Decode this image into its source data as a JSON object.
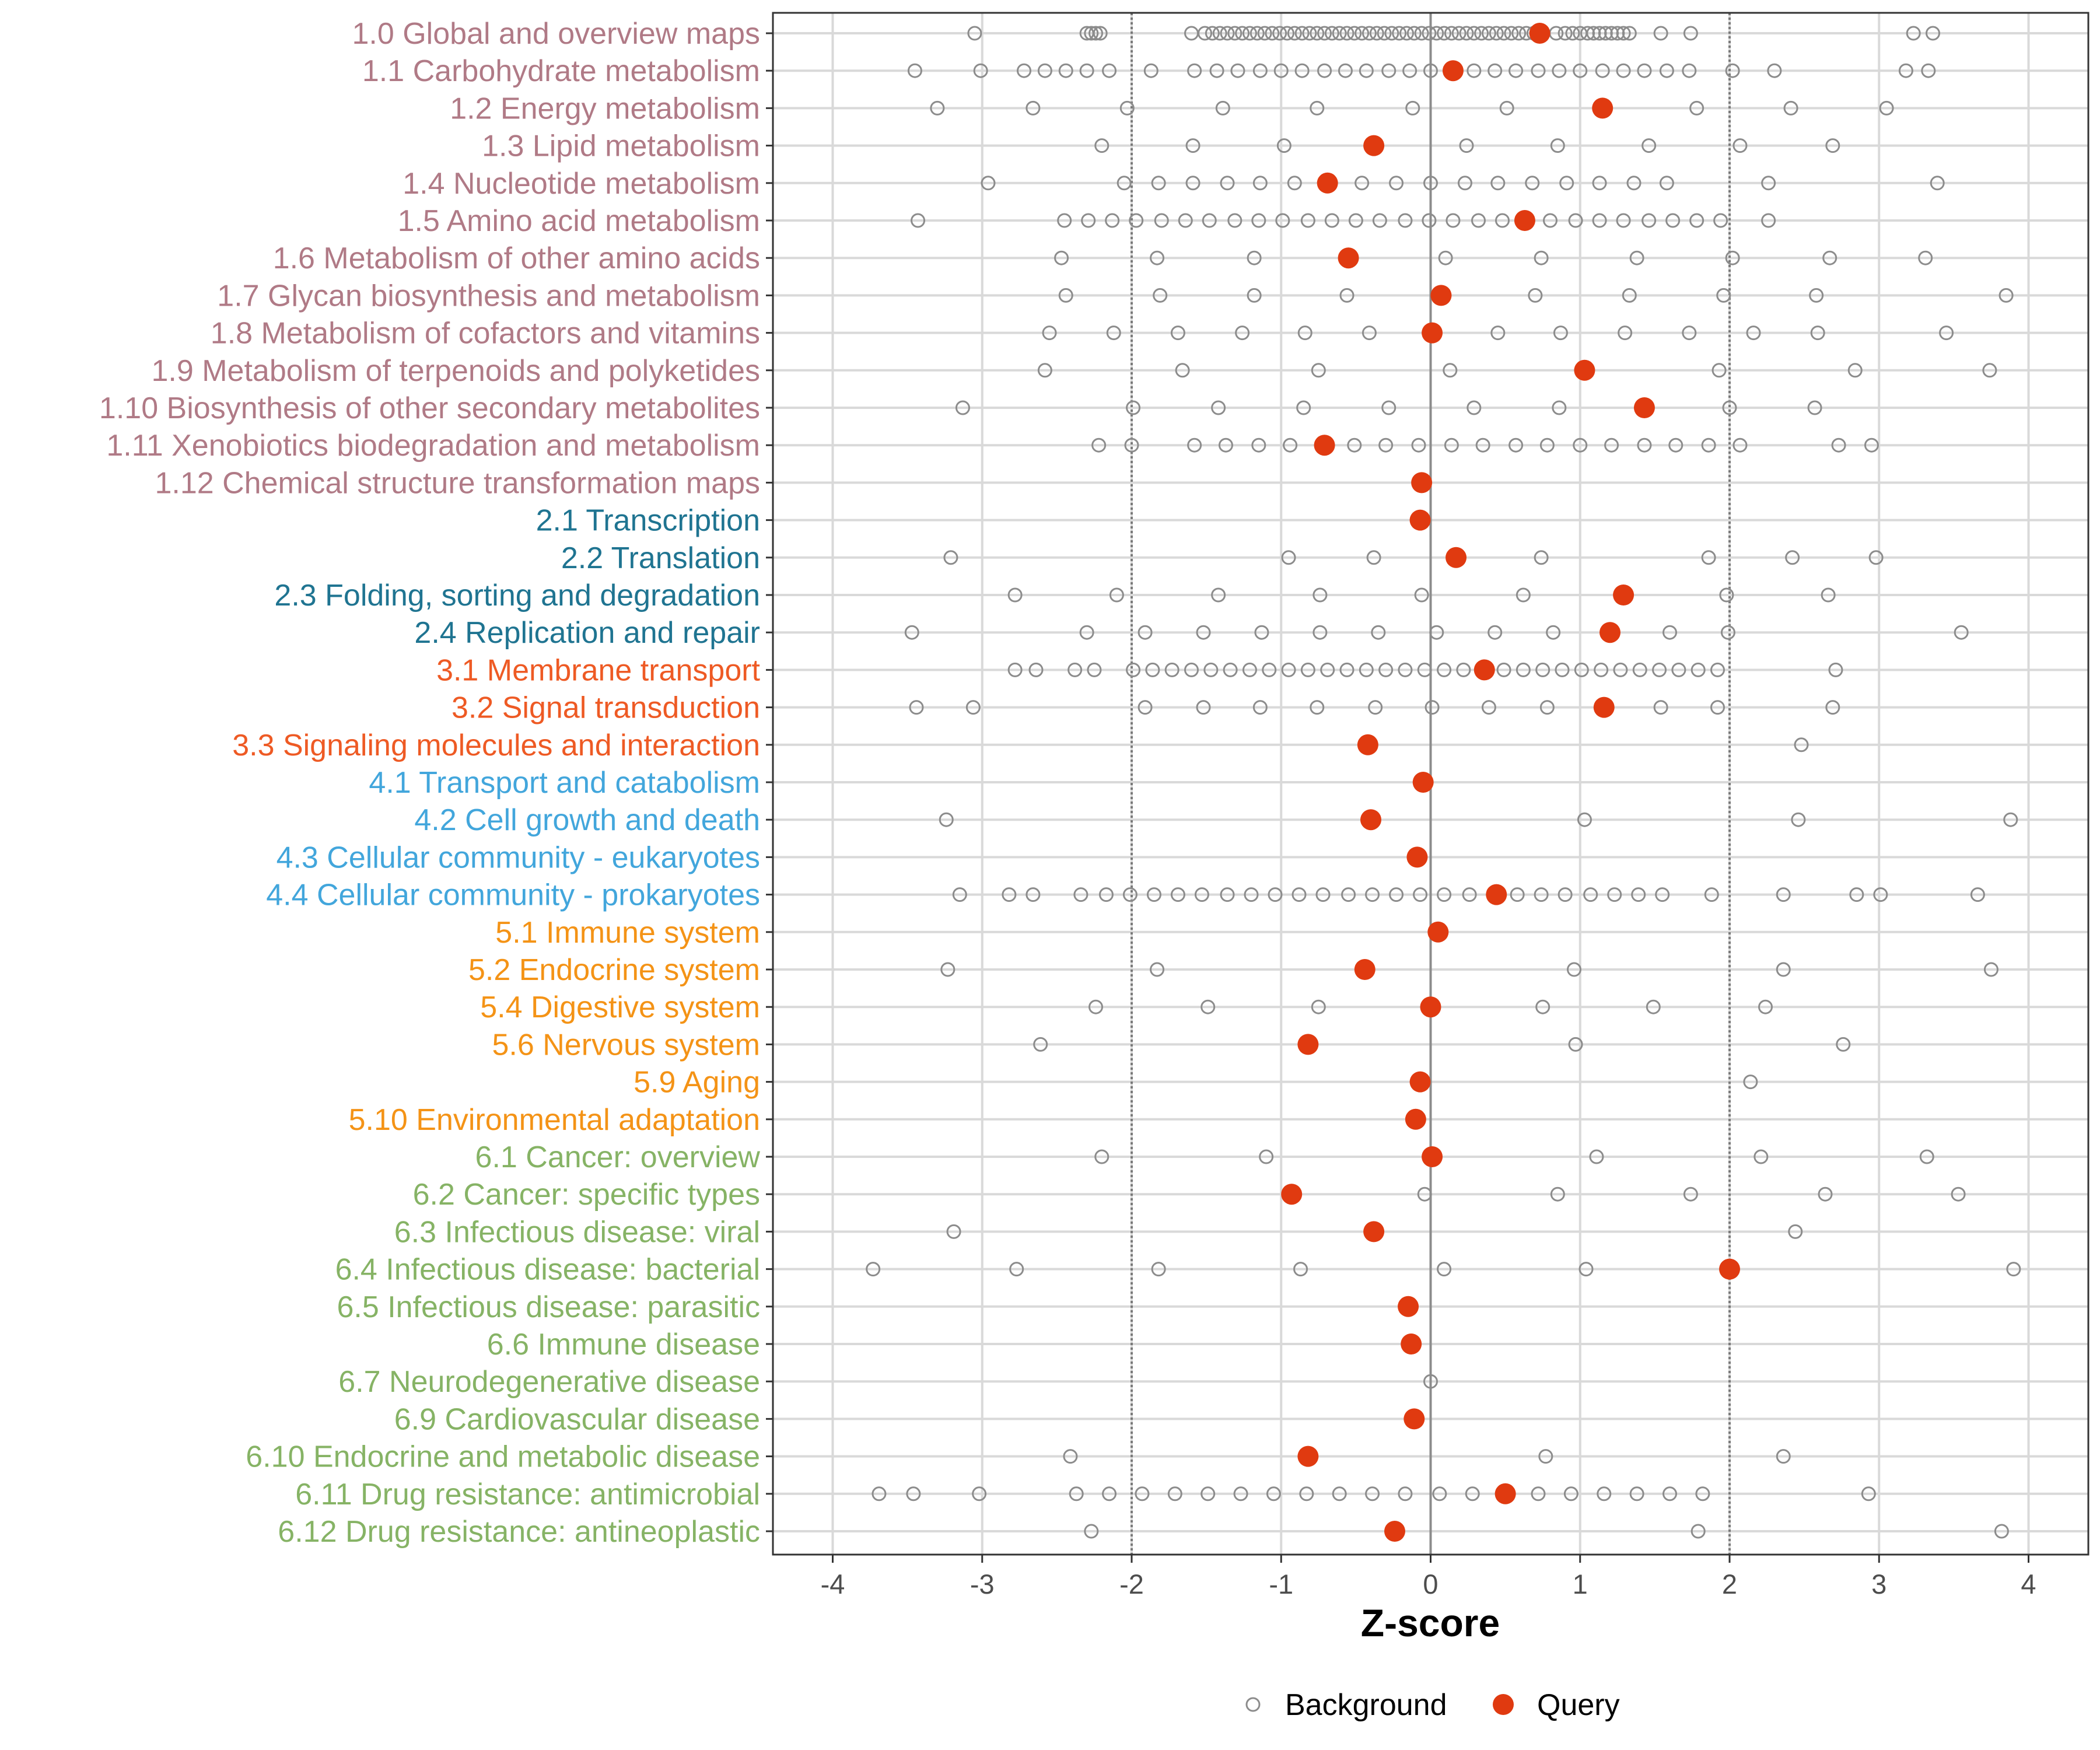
{
  "chart_data": {
    "type": "dot",
    "title": "",
    "xlabel": "Z-score",
    "ylabel": "",
    "xlim": [
      -4.4,
      4.4
    ],
    "x_ticks": [
      -4,
      -3,
      -2,
      -1,
      0,
      1,
      2,
      3,
      4
    ],
    "tick_labels": [
      "-4",
      "-3",
      "-2",
      "-1",
      "0",
      "1",
      "2",
      "3",
      "4"
    ],
    "reference_lines": [
      -2,
      2
    ],
    "zero_line": 0,
    "legend": [
      {
        "name": "Background",
        "marker": "open-circle",
        "color": "#8c8c8c"
      },
      {
        "name": "Query",
        "marker": "filled-circle",
        "color": "#e03a10"
      }
    ],
    "group_colors": {
      "1": "#b07a86",
      "2": "#1f7491",
      "3": "#ee5a24",
      "4": "#42a6dc",
      "5": "#f49316",
      "6": "#86b365"
    },
    "categories": [
      {
        "label": "1.0 Global and overview maps",
        "group": "1",
        "query": 0.73,
        "background": [
          -3.05,
          -2.3,
          -2.27,
          -2.24,
          -2.21,
          -1.6,
          -1.51,
          -1.46,
          -1.41,
          -1.36,
          -1.31,
          -1.26,
          -1.21,
          -1.16,
          -1.11,
          -1.06,
          -1.01,
          -0.96,
          -0.91,
          -0.86,
          -0.81,
          -0.76,
          -0.71,
          -0.66,
          -0.61,
          -0.56,
          -0.51,
          -0.46,
          -0.41,
          -0.36,
          -0.31,
          -0.26,
          -0.21,
          -0.16,
          -0.11,
          -0.06,
          -0.01,
          0.04,
          0.09,
          0.14,
          0.19,
          0.24,
          0.29,
          0.34,
          0.39,
          0.44,
          0.49,
          0.54,
          0.59,
          0.64,
          0.69,
          0.84,
          0.9,
          0.95,
          1.0,
          1.05,
          1.09,
          1.13,
          1.17,
          1.21,
          1.25,
          1.29,
          1.33,
          1.54,
          1.74,
          3.23,
          3.36
        ]
      },
      {
        "label": "1.1 Carbohydrate metabolism",
        "group": "1",
        "query": 0.15,
        "background": [
          -3.45,
          -3.01,
          -2.72,
          -2.58,
          -2.44,
          -2.3,
          -2.15,
          -1.87,
          -1.58,
          -1.43,
          -1.29,
          -1.14,
          -1.0,
          -0.86,
          -0.71,
          -0.57,
          -0.43,
          -0.28,
          -0.14,
          0.0,
          0.29,
          0.43,
          0.57,
          0.72,
          0.86,
          1.0,
          1.15,
          1.29,
          1.43,
          1.58,
          1.73,
          2.02,
          2.3,
          3.18,
          3.33
        ]
      },
      {
        "label": "1.2 Energy metabolism",
        "group": "1",
        "query": 1.15,
        "background": [
          -3.3,
          -2.66,
          -2.03,
          -1.39,
          -0.76,
          -0.12,
          0.51,
          1.78,
          2.41,
          3.05
        ]
      },
      {
        "label": "1.3 Lipid metabolism",
        "group": "1",
        "query": -0.38,
        "background": [
          -2.2,
          -1.59,
          -0.98,
          0.24,
          0.85,
          1.46,
          2.07,
          2.69
        ]
      },
      {
        "label": "1.4 Nucleotide metabolism",
        "group": "1",
        "query": -0.69,
        "background": [
          -2.96,
          -2.05,
          -1.82,
          -1.59,
          -1.36,
          -1.14,
          -0.91,
          -0.46,
          -0.23,
          0.0,
          0.23,
          0.45,
          0.68,
          0.91,
          1.13,
          1.36,
          1.58,
          2.26,
          3.39
        ]
      },
      {
        "label": "1.5 Amino acid metabolism",
        "group": "1",
        "query": 0.63,
        "background": [
          -3.43,
          -2.45,
          -2.29,
          -2.13,
          -1.97,
          -1.8,
          -1.64,
          -1.48,
          -1.31,
          -1.15,
          -0.99,
          -0.82,
          -0.66,
          -0.5,
          -0.34,
          -0.17,
          -0.01,
          0.15,
          0.32,
          0.48,
          0.8,
          0.97,
          1.13,
          1.29,
          1.46,
          1.62,
          1.78,
          1.94,
          2.26
        ]
      },
      {
        "label": "1.6 Metabolism of other amino acids",
        "group": "1",
        "query": -0.55,
        "background": [
          -2.47,
          -1.83,
          -1.18,
          0.1,
          0.74,
          1.38,
          2.02,
          2.67,
          3.31
        ]
      },
      {
        "label": "1.7 Glycan biosynthesis and metabolism",
        "group": "1",
        "query": 0.07,
        "background": [
          -2.44,
          -1.81,
          -1.18,
          -0.56,
          0.7,
          1.33,
          1.96,
          2.58,
          3.85
        ]
      },
      {
        "label": "1.8 Metabolism of cofactors and vitamins",
        "group": "1",
        "query": 0.01,
        "background": [
          -2.55,
          -2.12,
          -1.69,
          -1.26,
          -0.84,
          -0.41,
          0.45,
          0.87,
          1.3,
          1.73,
          2.16,
          2.59,
          3.45
        ]
      },
      {
        "label": "1.9 Metabolism of terpenoids and polyketides",
        "group": "1",
        "query": 1.03,
        "background": [
          -2.58,
          -1.66,
          -0.75,
          0.13,
          1.93,
          2.84,
          3.74
        ]
      },
      {
        "label": "1.10 Biosynthesis of other secondary metabolites",
        "group": "1",
        "query": 1.43,
        "background": [
          -3.13,
          -1.99,
          -1.42,
          -0.85,
          -0.28,
          0.29,
          0.86,
          2.0,
          2.57
        ]
      },
      {
        "label": "1.11 Xenobiotics biodegradation and metabolism",
        "group": "1",
        "query": -0.71,
        "background": [
          -2.22,
          -2.0,
          -1.58,
          -1.37,
          -1.15,
          -0.94,
          -0.51,
          -0.3,
          -0.08,
          0.14,
          0.35,
          0.57,
          0.78,
          1.0,
          1.21,
          1.43,
          1.64,
          1.86,
          2.07,
          2.73,
          2.95
        ]
      },
      {
        "label": "1.12 Chemical structure transformation maps",
        "group": "1",
        "query": -0.06,
        "background": []
      },
      {
        "label": "2.1 Transcription",
        "group": "2",
        "query": -0.07,
        "background": []
      },
      {
        "label": "2.2 Translation",
        "group": "2",
        "query": 0.17,
        "background": [
          -3.21,
          -0.95,
          -0.38,
          0.74,
          1.86,
          2.42,
          2.98
        ]
      },
      {
        "label": "2.3 Folding, sorting and degradation",
        "group": "2",
        "query": 1.29,
        "background": [
          -2.78,
          -2.1,
          -1.42,
          -0.74,
          -0.06,
          0.62,
          1.98,
          2.66
        ]
      },
      {
        "label": "2.4 Replication and repair",
        "group": "2",
        "query": 1.2,
        "background": [
          -3.47,
          -2.3,
          -1.91,
          -1.52,
          -1.13,
          -0.74,
          -0.35,
          0.04,
          0.43,
          0.82,
          1.6,
          1.99,
          3.55
        ]
      },
      {
        "label": "3.1 Membrane transport",
        "group": "3",
        "query": 0.36,
        "background": [
          -2.78,
          -2.64,
          -2.38,
          -2.25,
          -1.99,
          -1.86,
          -1.73,
          -1.6,
          -1.47,
          -1.34,
          -1.21,
          -1.08,
          -0.95,
          -0.82,
          -0.69,
          -0.56,
          -0.43,
          -0.3,
          -0.17,
          -0.04,
          0.09,
          0.22,
          0.49,
          0.62,
          0.75,
          0.88,
          1.01,
          1.14,
          1.27,
          1.4,
          1.53,
          1.66,
          1.79,
          1.92,
          2.71
        ]
      },
      {
        "label": "3.2 Signal transduction",
        "group": "3",
        "query": 1.16,
        "background": [
          -3.44,
          -3.06,
          -1.91,
          -1.52,
          -1.14,
          -0.76,
          -0.37,
          0.01,
          0.39,
          0.78,
          1.54,
          1.92,
          2.69
        ]
      },
      {
        "label": "3.3 Signaling molecules and interaction",
        "group": "3",
        "query": -0.42,
        "background": [
          2.48
        ]
      },
      {
        "label": "4.1 Transport and catabolism",
        "group": "4",
        "query": -0.05,
        "background": []
      },
      {
        "label": "4.2 Cell growth and death",
        "group": "4",
        "query": -0.4,
        "background": [
          -3.24,
          1.03,
          2.46,
          3.88
        ]
      },
      {
        "label": "4.3 Cellular community - eukaryotes",
        "group": "4",
        "query": -0.09,
        "background": []
      },
      {
        "label": "4.4 Cellular community - prokaryotes",
        "group": "4",
        "query": 0.44,
        "background": [
          -3.15,
          -2.82,
          -2.66,
          -2.34,
          -2.17,
          -2.01,
          -1.85,
          -1.69,
          -1.53,
          -1.36,
          -1.2,
          -1.04,
          -0.88,
          -0.72,
          -0.55,
          -0.39,
          -0.23,
          -0.07,
          0.09,
          0.26,
          0.58,
          0.74,
          0.9,
          1.07,
          1.23,
          1.39,
          1.55,
          1.88,
          2.36,
          2.85,
          3.01,
          3.66
        ]
      },
      {
        "label": "5.1 Immune system",
        "group": "5",
        "query": 0.05,
        "background": []
      },
      {
        "label": "5.2 Endocrine system",
        "group": "5",
        "query": -0.44,
        "background": [
          -3.23,
          -1.83,
          0.96,
          2.36,
          3.75
        ]
      },
      {
        "label": "5.4 Digestive system",
        "group": "5",
        "query": 0.0,
        "background": [
          -2.24,
          -1.49,
          -0.75,
          0.75,
          1.49,
          2.24
        ]
      },
      {
        "label": "5.6 Nervous system",
        "group": "5",
        "query": -0.82,
        "background": [
          -2.61,
          0.97,
          2.76
        ]
      },
      {
        "label": "5.9 Aging",
        "group": "5",
        "query": -0.07,
        "background": [
          2.14
        ]
      },
      {
        "label": "5.10 Environmental adaptation",
        "group": "5",
        "query": -0.1,
        "background": []
      },
      {
        "label": "6.1 Cancer: overview",
        "group": "6",
        "query": 0.01,
        "background": [
          -2.2,
          -1.1,
          1.11,
          2.21,
          3.32
        ]
      },
      {
        "label": "6.2 Cancer: specific types",
        "group": "6",
        "query": -0.93,
        "background": [
          -0.04,
          0.85,
          1.74,
          2.64,
          3.53
        ]
      },
      {
        "label": "6.3 Infectious disease: viral",
        "group": "6",
        "query": -0.38,
        "background": [
          -3.19,
          2.44
        ]
      },
      {
        "label": "6.4 Infectious disease: bacterial",
        "group": "6",
        "query": 2.0,
        "background": [
          -3.73,
          -2.77,
          -1.82,
          -0.87,
          0.09,
          1.04,
          2.0,
          3.9
        ]
      },
      {
        "label": "6.5 Infectious disease: parasitic",
        "group": "6",
        "query": -0.15,
        "background": []
      },
      {
        "label": "6.6 Immune disease",
        "group": "6",
        "query": -0.13,
        "background": []
      },
      {
        "label": "6.7 Neurodegenerative disease",
        "group": "6",
        "query": null,
        "background": [
          0.0
        ]
      },
      {
        "label": "6.9 Cardiovascular disease",
        "group": "6",
        "query": -0.11,
        "background": []
      },
      {
        "label": "6.10 Endocrine and metabolic disease",
        "group": "6",
        "query": -0.82,
        "background": [
          -2.41,
          0.77,
          2.36
        ]
      },
      {
        "label": "6.11 Drug resistance: antimicrobial",
        "group": "6",
        "query": 0.5,
        "background": [
          -3.69,
          -3.46,
          -3.02,
          -2.37,
          -2.15,
          -1.93,
          -1.71,
          -1.49,
          -1.27,
          -1.05,
          -0.83,
          -0.61,
          -0.39,
          -0.17,
          0.06,
          0.28,
          0.72,
          0.94,
          1.16,
          1.38,
          1.6,
          1.82,
          2.93
        ]
      },
      {
        "label": "6.12 Drug resistance: antineoplastic",
        "group": "6",
        "query": -0.24,
        "background": [
          -2.27,
          1.79,
          3.82
        ]
      }
    ]
  }
}
